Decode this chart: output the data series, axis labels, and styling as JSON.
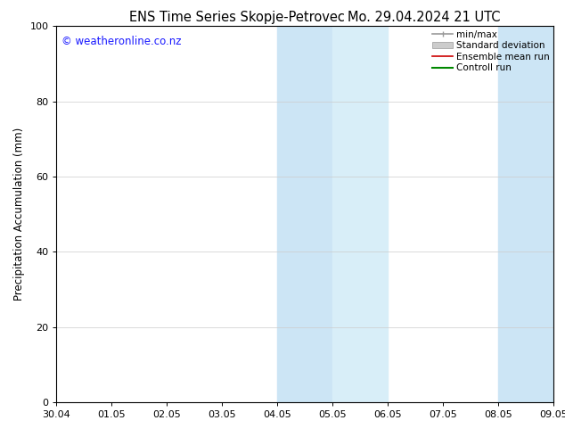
{
  "title_left": "ENS Time Series Skopje-Petrovec",
  "title_right": "Mo. 29.04.2024 21 UTC",
  "ylabel": "Precipitation Accumulation (mm)",
  "ylim": [
    0,
    100
  ],
  "yticks": [
    0,
    20,
    40,
    60,
    80,
    100
  ],
  "xtick_labels": [
    "30.04",
    "01.05",
    "02.05",
    "03.05",
    "04.05",
    "05.05",
    "06.05",
    "07.05",
    "08.05",
    "09.05"
  ],
  "shaded_regions": [
    {
      "xstart": 4.0,
      "xend": 5.0,
      "color": "#cce5f5"
    },
    {
      "xstart": 5.0,
      "xend": 6.0,
      "color": "#d8eef8"
    },
    {
      "xstart": 8.0,
      "xend": 9.0,
      "color": "#cce5f5"
    }
  ],
  "watermark": "© weatheronline.co.nz",
  "watermark_color": "#1a1aff",
  "legend_entries": [
    {
      "label": "min/max",
      "color": "#999999",
      "lw": 1.2
    },
    {
      "label": "Standard deviation",
      "color": "#bbbbbb",
      "lw": 5
    },
    {
      "label": "Ensemble mean run",
      "color": "#cc0000",
      "lw": 1.2
    },
    {
      "label": "Controll run",
      "color": "#008800",
      "lw": 1.5
    }
  ],
  "bg_color": "#ffffff",
  "title_fontsize": 10.5,
  "ylabel_fontsize": 8.5,
  "tick_fontsize": 8,
  "legend_fontsize": 7.5,
  "watermark_fontsize": 8.5
}
